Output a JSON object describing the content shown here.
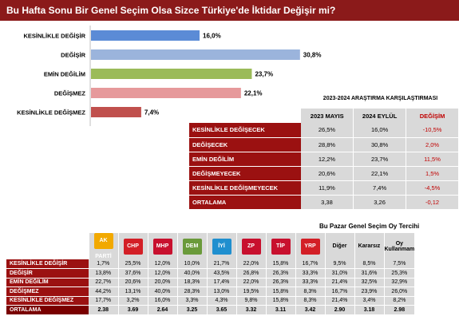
{
  "title": "Bu Hafta Sonu Bir Genel Seçim Olsa Sizce Türkiye'de İktidar  Değişir mi?",
  "chart_data": {
    "type": "bar",
    "orientation": "horizontal",
    "categories": [
      "KESİNLİKLE DEĞİŞİR",
      "DEĞİŞİR",
      "EMİN DEĞİLİM",
      "DEĞİŞMEZ",
      "KESİNLİKLE DEĞİŞMEZ"
    ],
    "values": [
      16.0,
      30.8,
      23.7,
      22.1,
      7.4
    ],
    "value_labels": [
      "16,0%",
      "30,8%",
      "23,7%",
      "22,1%",
      "7,4%"
    ],
    "colors": [
      "#5b8bd6",
      "#9bb4dc",
      "#9bbb59",
      "#e6999b",
      "#c0504d"
    ],
    "xlim": [
      0,
      40
    ],
    "grid": false,
    "legend": "none"
  },
  "comparison": {
    "title": "2023-2024 ARAŞTIRMA KARŞILAŞTIRMASI",
    "headers": [
      "2023 MAYIS",
      "2024 EYLÜL",
      "DEĞİŞİM"
    ],
    "rows": [
      {
        "label": "KESİNLİKLE DEĞİŞECEK",
        "v1": "26,5%",
        "v2": "16,0%",
        "change": "-10,5%"
      },
      {
        "label": "DEĞİŞECEK",
        "v1": "28,8%",
        "v2": "30,8%",
        "change": "2,0%"
      },
      {
        "label": "EMİN DEĞİLİM",
        "v1": "12,2%",
        "v2": "23,7%",
        "change": "11,5%"
      },
      {
        "label": "DEĞİŞMEYECEK",
        "v1": "20,6%",
        "v2": "22,1%",
        "change": "1,5%"
      },
      {
        "label": "KESİNLİKLE DEĞİŞMEYECEK",
        "v1": "11,9%",
        "v2": "7,4%",
        "change": "-4,5%"
      },
      {
        "label": "ORTALAMA",
        "v1": "3,38",
        "v2": "3,26",
        "change": "-0,12"
      }
    ]
  },
  "vote": {
    "title": "Bu Pazar Genel Seçim Oy Tercihi",
    "parties": [
      {
        "name": "AK PARTİ",
        "icon": "ak-parti-logo",
        "color": "#f2a900"
      },
      {
        "name": "CHP",
        "icon": "chp-logo",
        "color": "#d31f26"
      },
      {
        "name": "MHP",
        "icon": "mhp-logo",
        "color": "#c8102e"
      },
      {
        "name": "DEM",
        "icon": "dem-parti-logo",
        "color": "#6a9a3a"
      },
      {
        "name": "İYİ",
        "icon": "iyi-parti-logo",
        "color": "#1f8fcf"
      },
      {
        "name": "ZP",
        "icon": "zafer-partisi-logo",
        "color": "#c8102e"
      },
      {
        "name": "TİP",
        "icon": "tip-logo",
        "color": "#c8102e"
      },
      {
        "name": "YRP",
        "icon": "yeniden-refah-logo",
        "color": "#d31f26"
      }
    ],
    "text_headers": [
      "Diğer",
      "Kararsız",
      "Oy Kullanmam"
    ],
    "rows": [
      {
        "label": "KESİNLİKLE DEĞİŞİR",
        "values": [
          "1,7%",
          "25,5%",
          "12,0%",
          "10,0%",
          "21,7%",
          "22,0%",
          "15,8%",
          "16,7%",
          "9,5%",
          "8,5%",
          "7,5%"
        ]
      },
      {
        "label": "DEĞİŞİR",
        "values": [
          "13,8%",
          "37,6%",
          "12,0%",
          "40,0%",
          "43,5%",
          "26,8%",
          "26,3%",
          "33,3%",
          "31,0%",
          "31,6%",
          "25,3%"
        ]
      },
      {
        "label": "EMİN DEĞİLİM",
        "values": [
          "22,7%",
          "20,6%",
          "20,0%",
          "18,3%",
          "17,4%",
          "22,0%",
          "26,3%",
          "33,3%",
          "21,4%",
          "32,5%",
          "32,9%"
        ]
      },
      {
        "label": "DEĞİŞMEZ",
        "values": [
          "44,2%",
          "13,1%",
          "40,0%",
          "28,3%",
          "13,0%",
          "19,5%",
          "15,8%",
          "8,3%",
          "16,7%",
          "23,9%",
          "26,0%"
        ]
      },
      {
        "label": "KESİNLİKLE DEĞİŞMEZ",
        "values": [
          "17,7%",
          "3,2%",
          "16,0%",
          "3,3%",
          "4,3%",
          "9,8%",
          "15,8%",
          "8,3%",
          "21,4%",
          "3,4%",
          "8,2%"
        ]
      },
      {
        "label": "ORTALAMA",
        "values": [
          "2.38",
          "3.69",
          "2.64",
          "3.25",
          "3.65",
          "3.32",
          "3.11",
          "3.42",
          "2.90",
          "3.18",
          "2.98"
        ]
      }
    ]
  }
}
